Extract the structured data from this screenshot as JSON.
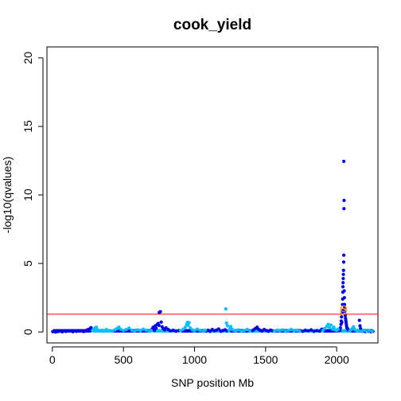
{
  "chart_data": {
    "type": "scatter",
    "title": "cook_yield",
    "xlabel": "SNP position Mb",
    "ylabel": "-log10(qvalues)",
    "xlim": [
      -38,
      2290
    ],
    "ylim": [
      -0.8,
      20.8
    ],
    "xticks": [
      0,
      500,
      1000,
      1500,
      2000
    ],
    "yticks": [
      0,
      5,
      10,
      15,
      20
    ],
    "grid": false,
    "threshold": {
      "y": 1.3,
      "color": "#ff0000"
    },
    "colors": {
      "dark": "#0000ee",
      "light": "#00bfff",
      "highlight": "#ff8c1a"
    },
    "chromosome_bounds": [
      0,
      280,
      420,
      700,
      900,
      1080,
      1240,
      1400,
      1560,
      1760,
      1900,
      2020,
      2090,
      2260
    ],
    "series": [
      {
        "color_key": "dark",
        "points": [
          [
            3,
            0.02
          ],
          [
            15,
            0.05
          ],
          [
            22,
            0.0
          ],
          [
            38,
            0.03
          ],
          [
            52,
            0.06
          ],
          [
            70,
            0.01
          ],
          [
            95,
            0.04
          ],
          [
            120,
            0.08
          ],
          [
            145,
            0.02
          ],
          [
            170,
            0.05
          ],
          [
            195,
            0.09
          ],
          [
            220,
            0.03
          ],
          [
            240,
            0.12
          ],
          [
            252,
            0.18
          ],
          [
            262,
            0.22
          ],
          [
            268,
            0.14
          ],
          [
            272,
            0.31
          ],
          [
            266,
            0.08
          ],
          [
            702,
            0.22
          ],
          [
            710,
            0.35
          ],
          [
            718,
            0.12
          ],
          [
            724,
            0.44
          ],
          [
            730,
            0.28
          ],
          [
            738,
            0.55
          ],
          [
            744,
            0.62
          ],
          [
            750,
            0.48
          ],
          [
            752,
            1.42
          ],
          [
            760,
            1.48
          ],
          [
            766,
            0.72
          ],
          [
            772,
            0.38
          ],
          [
            780,
            0.25
          ],
          [
            790,
            0.15
          ],
          [
            800,
            0.3
          ],
          [
            815,
            0.18
          ],
          [
            830,
            0.08
          ],
          [
            850,
            0.12
          ],
          [
            870,
            0.05
          ],
          [
            890,
            0.1
          ],
          [
            1082,
            0.06
          ],
          [
            1095,
            0.12
          ],
          [
            1110,
            0.04
          ],
          [
            1125,
            0.18
          ],
          [
            1140,
            0.08
          ],
          [
            1155,
            0.14
          ],
          [
            1170,
            0.22
          ],
          [
            1185,
            0.05
          ],
          [
            1200,
            0.1
          ],
          [
            1215,
            0.16
          ],
          [
            1230,
            0.07
          ],
          [
            1402,
            0.08
          ],
          [
            1415,
            0.15
          ],
          [
            1428,
            0.25
          ],
          [
            1440,
            0.35
          ],
          [
            1450,
            0.2
          ],
          [
            1462,
            0.12
          ],
          [
            1475,
            0.06
          ],
          [
            1490,
            0.18
          ],
          [
            1505,
            0.1
          ],
          [
            1520,
            0.05
          ],
          [
            1535,
            0.14
          ],
          [
            1550,
            0.08
          ],
          [
            1762,
            0.05
          ],
          [
            1780,
            0.12
          ],
          [
            1800,
            0.08
          ],
          [
            1820,
            0.15
          ],
          [
            1840,
            0.04
          ],
          [
            1860,
            0.1
          ],
          [
            1880,
            0.06
          ],
          [
            1895,
            0.2
          ],
          [
            2022,
            0.1
          ],
          [
            2026,
            0.3
          ],
          [
            2030,
            0.55
          ],
          [
            2032,
            0.8
          ],
          [
            2034,
            1.1
          ],
          [
            2036,
            0.7
          ],
          [
            2038,
            1.4
          ],
          [
            2040,
            1.6
          ],
          [
            2041,
            2.0
          ],
          [
            2042,
            2.4
          ],
          [
            2043,
            2.9
          ],
          [
            2044,
            3.3
          ],
          [
            2045,
            3.6
          ],
          [
            2046,
            3.9
          ],
          [
            2047,
            4.2
          ],
          [
            2048,
            4.5
          ],
          [
            2049,
            5.1
          ],
          [
            2050,
            5.6
          ],
          [
            2051,
            9.0
          ],
          [
            2052,
            9.6
          ],
          [
            2050,
            12.45
          ],
          [
            2053,
            3.0
          ],
          [
            2054,
            2.5
          ],
          [
            2055,
            2.0
          ],
          [
            2056,
            1.8
          ],
          [
            2058,
            1.5
          ],
          [
            2060,
            1.2
          ],
          [
            2062,
            1.0
          ],
          [
            2064,
            0.85
          ],
          [
            2066,
            0.7
          ],
          [
            2068,
            0.55
          ],
          [
            2070,
            0.4
          ],
          [
            2072,
            0.3
          ],
          [
            2075,
            0.25
          ],
          [
            2078,
            0.2
          ],
          [
            2082,
            0.15
          ],
          [
            2086,
            0.1
          ],
          [
            2160,
            0.85
          ],
          [
            2164,
            0.45
          ],
          [
            2168,
            0.25
          ],
          [
            2172,
            0.1
          ],
          [
            2180,
            0.05
          ],
          [
            2200,
            0.03
          ],
          [
            2220,
            0.06
          ],
          [
            2240,
            0.02
          ],
          [
            2255,
            0.04
          ]
        ]
      },
      {
        "color_key": "light",
        "points": [
          [
            282,
            0.1
          ],
          [
            290,
            0.2
          ],
          [
            300,
            0.28
          ],
          [
            310,
            0.35
          ],
          [
            320,
            0.15
          ],
          [
            335,
            0.08
          ],
          [
            350,
            0.12
          ],
          [
            365,
            0.05
          ],
          [
            380,
            0.18
          ],
          [
            395,
            0.1
          ],
          [
            410,
            0.06
          ],
          [
            422,
            0.08
          ],
          [
            440,
            0.15
          ],
          [
            455,
            0.25
          ],
          [
            468,
            0.35
          ],
          [
            480,
            0.2
          ],
          [
            500,
            0.1
          ],
          [
            520,
            0.18
          ],
          [
            540,
            0.28
          ],
          [
            560,
            0.12
          ],
          [
            580,
            0.06
          ],
          [
            600,
            0.15
          ],
          [
            620,
            0.08
          ],
          [
            640,
            0.2
          ],
          [
            660,
            0.12
          ],
          [
            680,
            0.05
          ],
          [
            695,
            0.1
          ],
          [
            902,
            0.1
          ],
          [
            920,
            0.2
          ],
          [
            935,
            0.35
          ],
          [
            945,
            0.55
          ],
          [
            950,
            0.7
          ],
          [
            955,
            0.5
          ],
          [
            962,
            0.68
          ],
          [
            970,
            0.3
          ],
          [
            985,
            0.15
          ],
          [
            1000,
            0.08
          ],
          [
            1020,
            0.2
          ],
          [
            1040,
            0.1
          ],
          [
            1060,
            0.06
          ],
          [
            1075,
            0.12
          ],
          [
            1242,
            0.1
          ],
          [
            1250,
            0.25
          ],
          [
            1255,
            0.4
          ],
          [
            1220,
            1.68
          ],
          [
            1225,
            0.65
          ],
          [
            1232,
            0.45
          ],
          [
            1262,
            0.2
          ],
          [
            1275,
            0.12
          ],
          [
            1290,
            0.08
          ],
          [
            1310,
            0.15
          ],
          [
            1330,
            0.05
          ],
          [
            1350,
            0.1
          ],
          [
            1370,
            0.18
          ],
          [
            1390,
            0.06
          ],
          [
            1562,
            0.06
          ],
          [
            1580,
            0.12
          ],
          [
            1600,
            0.08
          ],
          [
            1620,
            0.15
          ],
          [
            1640,
            0.05
          ],
          [
            1660,
            0.1
          ],
          [
            1680,
            0.18
          ],
          [
            1700,
            0.08
          ],
          [
            1720,
            0.12
          ],
          [
            1740,
            0.05
          ],
          [
            1902,
            0.1
          ],
          [
            1915,
            0.25
          ],
          [
            1930,
            0.4
          ],
          [
            1940,
            0.55
          ],
          [
            1950,
            0.3
          ],
          [
            1960,
            0.5
          ],
          [
            1970,
            0.2
          ],
          [
            1980,
            0.35
          ],
          [
            1990,
            0.15
          ],
          [
            2000,
            0.1
          ],
          [
            2010,
            0.2
          ],
          [
            2092,
            0.08
          ],
          [
            2100,
            0.15
          ],
          [
            2110,
            0.25
          ],
          [
            2118,
            0.38
          ],
          [
            2125,
            0.2
          ],
          [
            2135,
            0.12
          ],
          [
            2145,
            0.06
          ],
          [
            2155,
            0.1
          ],
          [
            2175,
            0.05
          ],
          [
            2190,
            0.12
          ],
          [
            2210,
            0.06
          ],
          [
            2230,
            0.1
          ],
          [
            2250,
            0.05
          ]
        ]
      }
    ],
    "highlighted": [
      [
        2048,
        1.5
      ],
      [
        2048,
        1.7
      ]
    ]
  }
}
